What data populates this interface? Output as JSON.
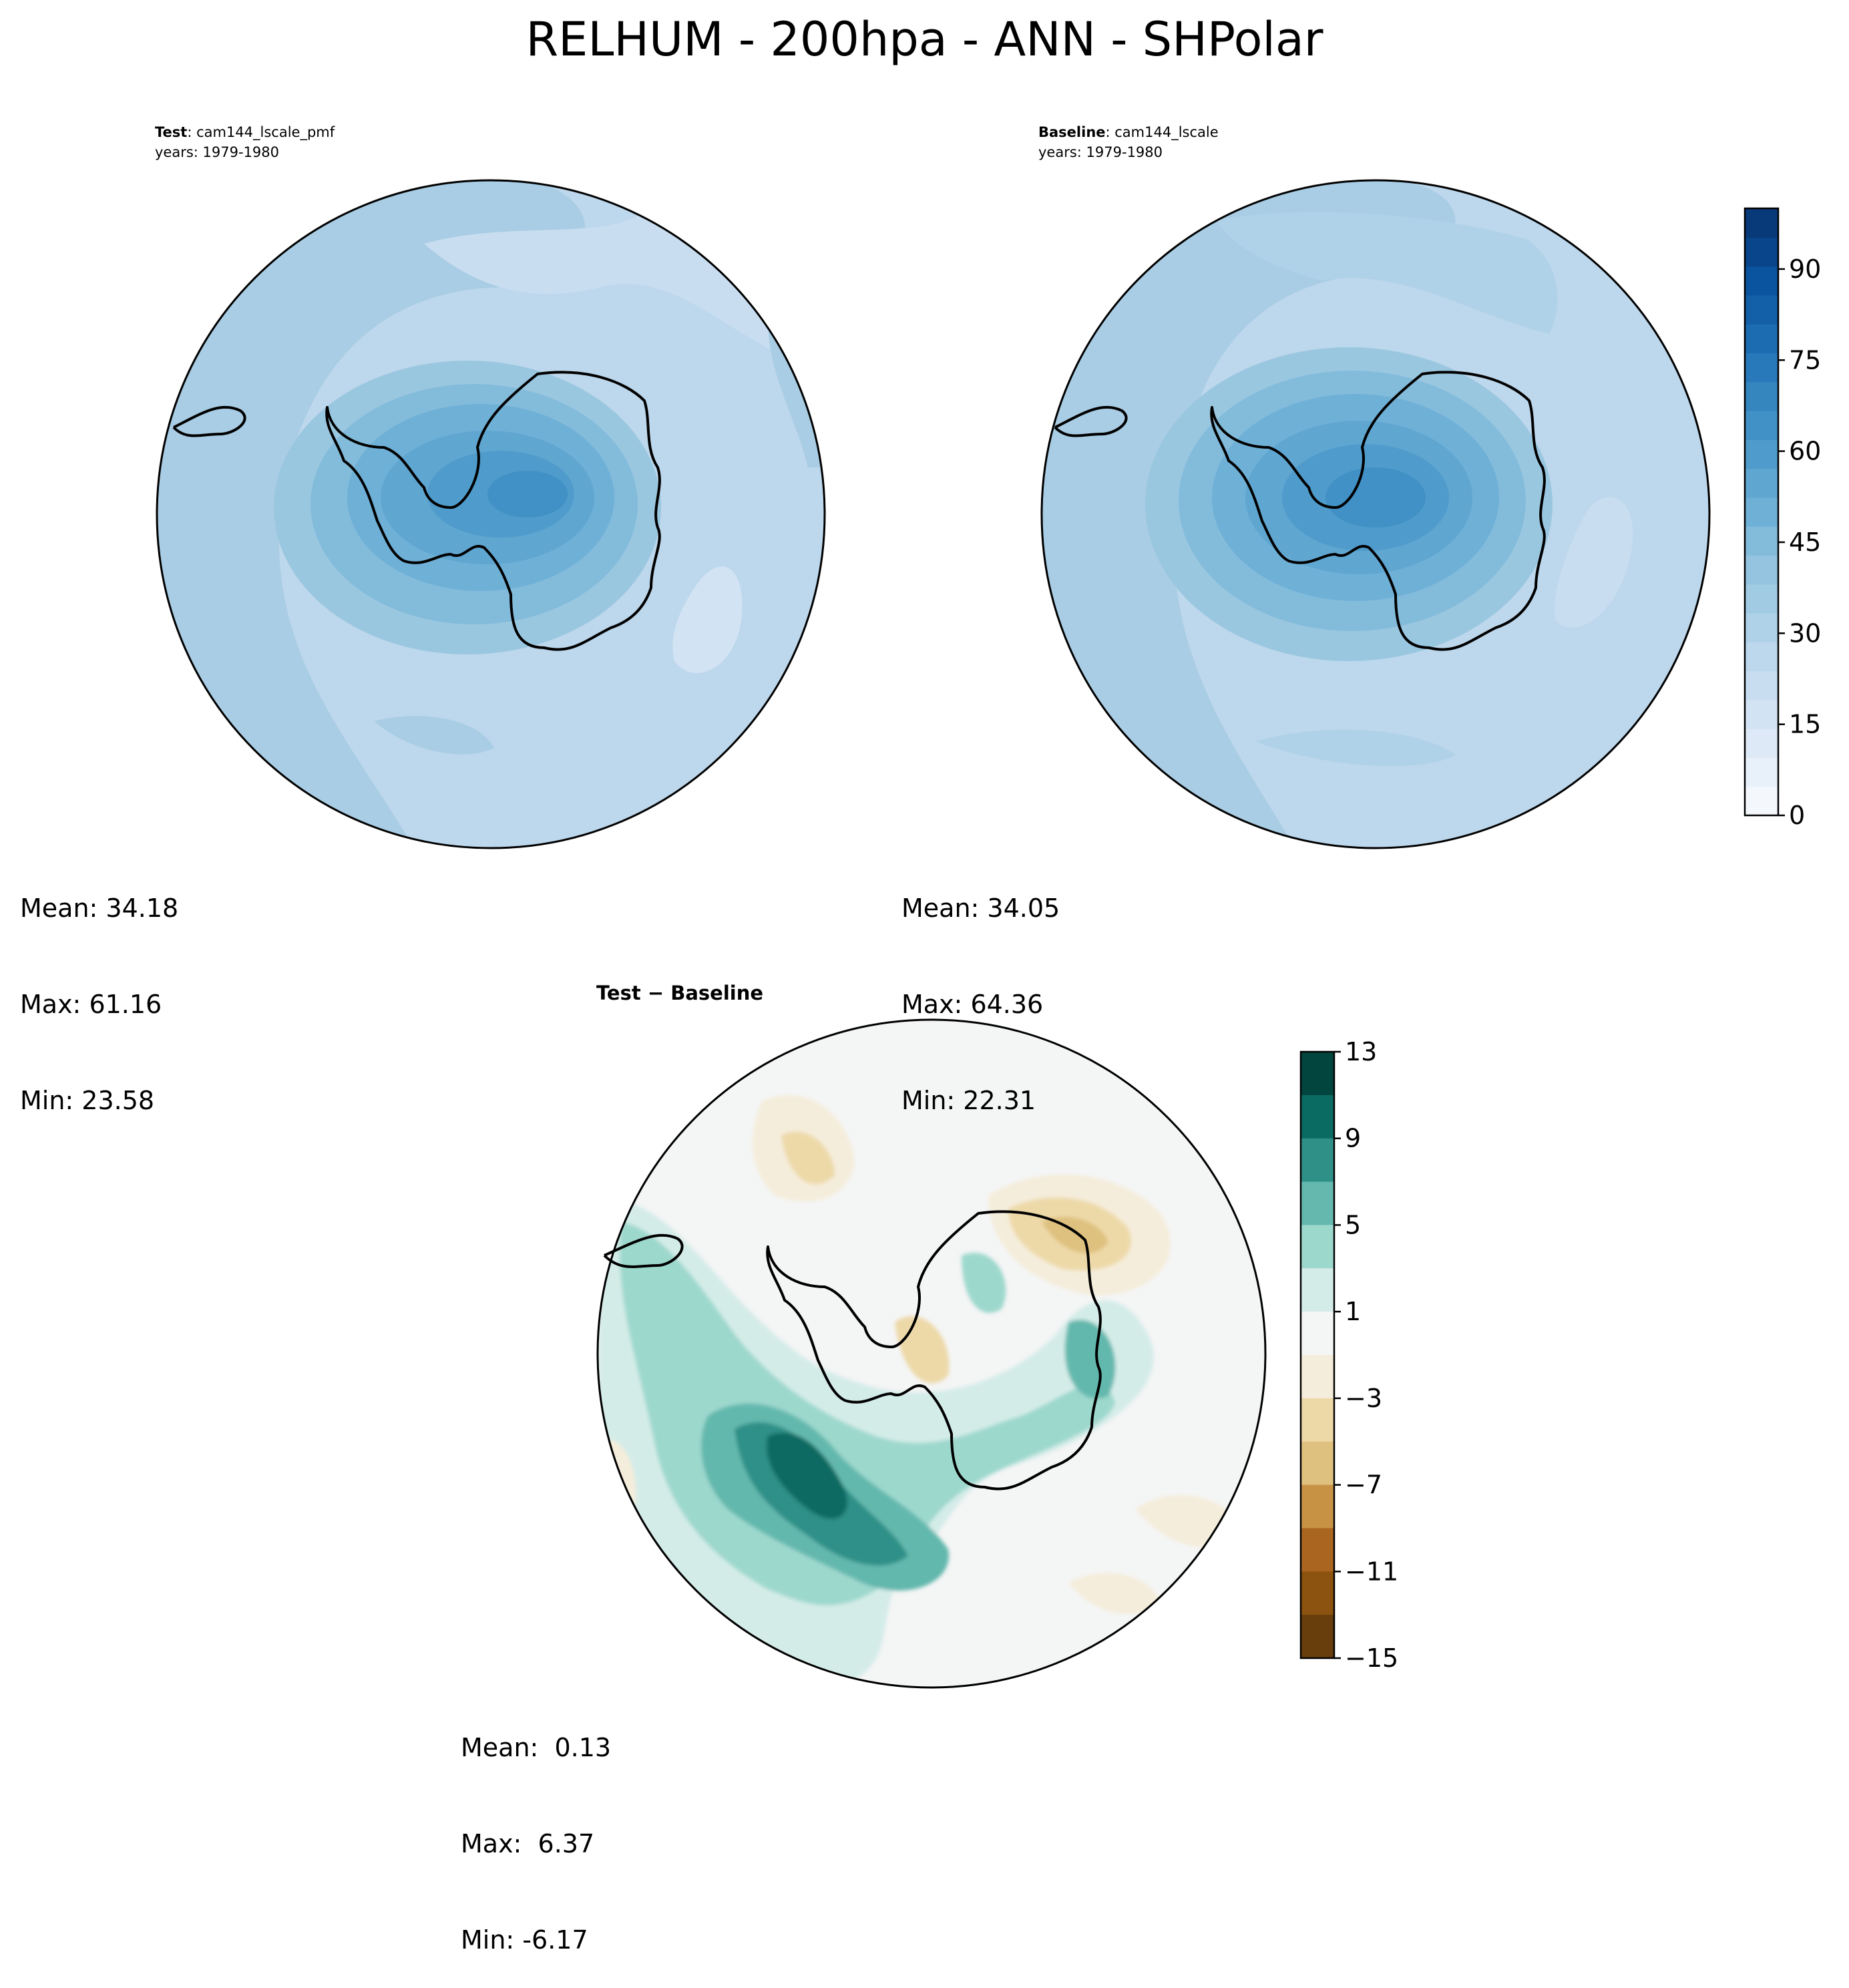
{
  "figure": {
    "suptitle": "RELHUM - 200hpa - ANN - SHPolar"
  },
  "panels": [
    {
      "id": "test",
      "label_bold": "Test",
      "label_rest": ": cam144_lscale_pmf",
      "years": "years: 1979-1980",
      "stats": {
        "mean": "Mean: 34.18",
        "max": "Max: 61.16",
        "min": "Min: 23.58"
      }
    },
    {
      "id": "baseline",
      "label_bold": "Baseline",
      "label_rest": ": cam144_lscale",
      "years": "years: 1979-1980",
      "stats": {
        "mean": "Mean: 34.05",
        "max": "Max: 64.36",
        "min": "Min: 22.31"
      }
    },
    {
      "id": "diff",
      "title": "Test − Baseline",
      "stats": {
        "mean": "Mean:  0.13",
        "max": "Max:  6.37",
        "min": "Min: -6.17"
      }
    }
  ],
  "colorbars": {
    "main": {
      "ticks": [
        "0",
        "15",
        "30",
        "45",
        "60",
        "75",
        "90"
      ],
      "levels": [
        0,
        5,
        10,
        15,
        20,
        25,
        30,
        35,
        40,
        45,
        50,
        55,
        60,
        65,
        70,
        75,
        80,
        85,
        90,
        95,
        100
      ],
      "colors": [
        "#f4f8fd",
        "#e8f1fa",
        "#dde9f6",
        "#d2e3f3",
        "#c9ddf0",
        "#bdd7ec",
        "#b0d2e8",
        "#a1cbe2",
        "#94c4df",
        "#83bbdb",
        "#6fb0d7",
        "#5fa6d1",
        "#4f9bcb",
        "#4191c6",
        "#3585bf",
        "#2879b9",
        "#1c6cb1",
        "#1460a8",
        "#0a539e",
        "#08458a",
        "#083a7a"
      ]
    },
    "diff": {
      "ticks": [
        "13",
        "9",
        "5",
        "1",
        "−3",
        "−7",
        "−11",
        "−15"
      ],
      "colors_top_to_bottom": [
        "#01453e",
        "#0a6b62",
        "#2f9088",
        "#64b8ad",
        "#9dd8cd",
        "#d4ece8",
        "#f4f5f5",
        "#f5eddb",
        "#edd9a8",
        "#dfc17f",
        "#c79244",
        "#aa6620",
        "#8c520f",
        "#683e0c"
      ]
    }
  },
  "chart_data": [
    {
      "type": "heatmap",
      "projection": "south polar stereographic",
      "title": "Test: cam144_lscale_pmf, years: 1979-1980",
      "colorbar_range": [
        0,
        100
      ],
      "colorbar_ticks": [
        0,
        15,
        30,
        45,
        60,
        75,
        90
      ],
      "mean": 34.18,
      "max": 61.16,
      "min": 23.58
    },
    {
      "type": "heatmap",
      "projection": "south polar stereographic",
      "title": "Baseline: cam144_lscale, years: 1979-1980",
      "colorbar_range": [
        0,
        100
      ],
      "colorbar_ticks": [
        0,
        15,
        30,
        45,
        60,
        75,
        90
      ],
      "mean": 34.05,
      "max": 64.36,
      "min": 22.31
    },
    {
      "type": "heatmap",
      "projection": "south polar stereographic",
      "title": "Test − Baseline",
      "colorbar_range": [
        -15,
        13
      ],
      "colorbar_ticks": [
        -15,
        -11,
        -7,
        -3,
        1,
        5,
        9,
        13
      ],
      "mean": 0.13,
      "max": 6.37,
      "min": -6.17
    }
  ]
}
